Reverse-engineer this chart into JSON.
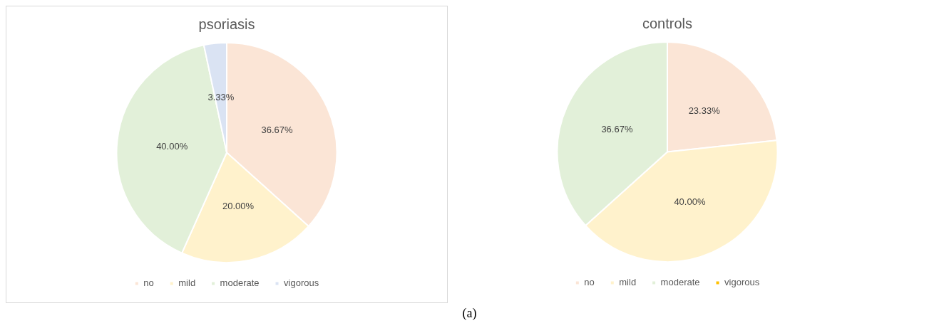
{
  "chart_data": [
    {
      "type": "pie",
      "title": "psoriasis",
      "categories": [
        "no",
        "mild",
        "moderate",
        "vigorous"
      ],
      "values": [
        36.67,
        20.0,
        40.0,
        3.33
      ],
      "value_labels": [
        "36.67%",
        "20.00%",
        "40.00%",
        "3.33%"
      ],
      "colors": [
        "#fbe5d6",
        "#fff2cc",
        "#e2f0d9",
        "#dae3f3"
      ],
      "legend": "bottom",
      "annotations": [
        "(a)"
      ]
    },
    {
      "type": "pie",
      "title": "controls",
      "categories": [
        "no",
        "mild",
        "moderate",
        "vigorous"
      ],
      "values": [
        23.33,
        40.0,
        36.67,
        0
      ],
      "value_labels": [
        "23.33%",
        "40.00%",
        "36.67%",
        null
      ],
      "colors": [
        "#fbe5d6",
        "#fff2cc",
        "#e2f0d9",
        "#ffc000"
      ],
      "legend": "bottom"
    }
  ]
}
